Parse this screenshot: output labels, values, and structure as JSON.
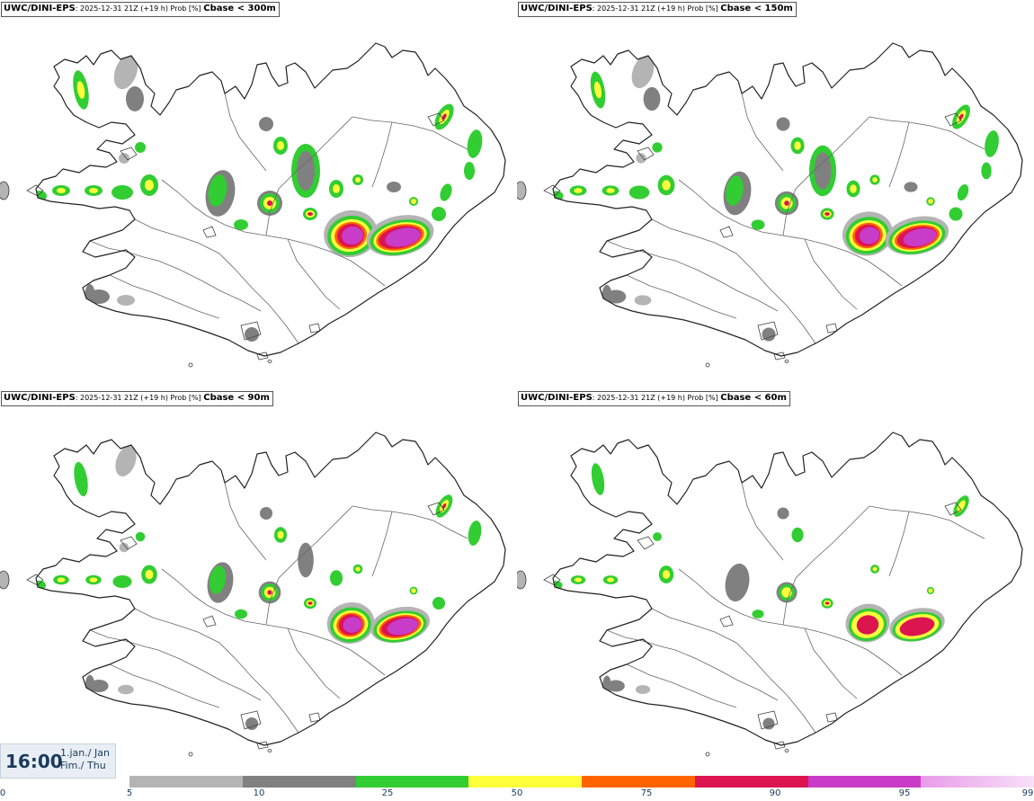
{
  "panels": [
    {
      "model": "UWC/DINI-EPS",
      "meta": ": 2025-12-31 21Z (+19 h) Prob [%] ",
      "param": "Cbase < 300m",
      "level": 4
    },
    {
      "model": "UWC/DINI-EPS",
      "meta": ": 2025-12-31 21Z (+19 h) Prob [%] ",
      "param": "Cbase < 150m",
      "level": 3
    },
    {
      "model": "UWC/DINI-EPS",
      "meta": ": 2025-12-31 21Z (+19 h) Prob [%] ",
      "param": "Cbase < 90m",
      "level": 2
    },
    {
      "model": "UWC/DINI-EPS",
      "meta": ": 2025-12-31 21Z (+19 h) Prob [%] ",
      "param": "Cbase < 60m",
      "level": 1
    }
  ],
  "valid_time": {
    "time": "16:00",
    "date_line1": "1.jan./ Jan",
    "date_line2": "Fim./ Thu"
  },
  "legend": {
    "ticks": [
      "0",
      "5",
      "10",
      "25",
      "50",
      "75",
      "90",
      "95",
      "99"
    ],
    "colors": [
      "#b4b4b4",
      "#808080",
      "#32cd32",
      "#ffff3c",
      "#ff6400",
      "#dc1450",
      "#c83cc8",
      "#f0b4f0"
    ]
  },
  "colors": {
    "text": "#1a3a5c",
    "land_outline": "#222222"
  }
}
